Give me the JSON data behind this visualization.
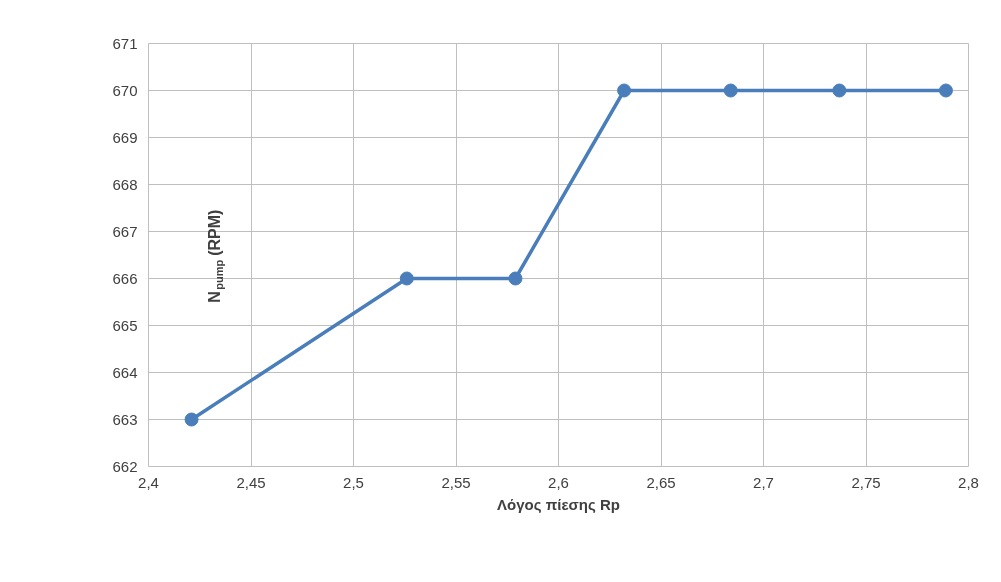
{
  "chart_data": {
    "type": "line",
    "xlabel": "Λόγος πίεσης Rp",
    "ylabel": "N$_{pump}$ (RPM)",
    "x": [
      2.421,
      2.526,
      2.579,
      2.632,
      2.684,
      2.737,
      2.789
    ],
    "series": [
      {
        "color": "#4a7ebb",
        "values": [
          663,
          666,
          666,
          670,
          670,
          670,
          670
        ]
      }
    ],
    "xlim": [
      2.4,
      2.8
    ],
    "ylim": [
      662,
      671
    ],
    "xticks": [
      {
        "value": 2.4,
        "label": "2,4"
      },
      {
        "value": 2.45,
        "label": "2,45"
      },
      {
        "value": 2.5,
        "label": "2,5"
      },
      {
        "value": 2.55,
        "label": "2,55"
      },
      {
        "value": 2.6,
        "label": "2,6"
      },
      {
        "value": 2.65,
        "label": "2,65"
      },
      {
        "value": 2.7,
        "label": "2,7"
      },
      {
        "value": 2.75,
        "label": "2,75"
      },
      {
        "value": 2.8,
        "label": "2,8"
      }
    ],
    "yticks": [
      662,
      663,
      664,
      665,
      666,
      667,
      668,
      669,
      670,
      671
    ],
    "grid": true,
    "legend": false,
    "marker": "circle",
    "line_style": "solid"
  }
}
